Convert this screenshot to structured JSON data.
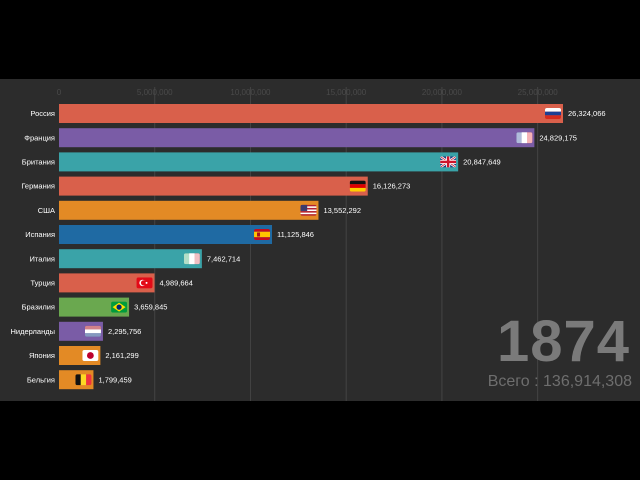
{
  "chart_data": {
    "type": "bar",
    "orientation": "horizontal",
    "year": "1874",
    "total_label": "Всего : 136,914,308",
    "categories": [
      "Россия",
      "Франция",
      "Британия",
      "Германия",
      "США",
      "Испания",
      "Италия",
      "Турция",
      "Бразилия",
      "Нидерланды",
      "Япония",
      "Бельгия"
    ],
    "values": [
      26324066,
      24829175,
      20847649,
      16126273,
      13552292,
      11125846,
      7462714,
      4989664,
      3659845,
      2295756,
      2161299,
      1799459
    ],
    "value_labels": [
      "26,324,066",
      "24,829,175",
      "20,847,649",
      "16,126,273",
      "13,552,292",
      "11,125,846",
      "7,462,714",
      "4,989,664",
      "3,659,845",
      "2,295,756",
      "2,161,299",
      "1,799,459"
    ],
    "colors": [
      "#d9604b",
      "#7a5ca6",
      "#3aa3a8",
      "#d9604b",
      "#e38a25",
      "#1f6aa3",
      "#3aa3a8",
      "#d9604b",
      "#6aa84f",
      "#7a5ca6",
      "#e38a25",
      "#e38a25"
    ],
    "flags": [
      "russia-flag",
      "france-flag",
      "uk-flag",
      "germany-flag",
      "usa-flag",
      "spain-flag",
      "italy-flag",
      "turkey-flag",
      "brazil-flag",
      "netherlands-flag",
      "japan-flag",
      "belgium-flag"
    ],
    "x_ticks": [
      0,
      5000000,
      10000000,
      15000000,
      20000000,
      25000000
    ],
    "x_tick_labels": [
      "0",
      "5,000,000",
      "10,000,000",
      "15,000,000",
      "20,000,000",
      "25,000,000"
    ],
    "xlim": [
      0,
      26324066
    ],
    "grid": true,
    "grid_color": "#444444",
    "panel_color": "#2c2c2c"
  }
}
